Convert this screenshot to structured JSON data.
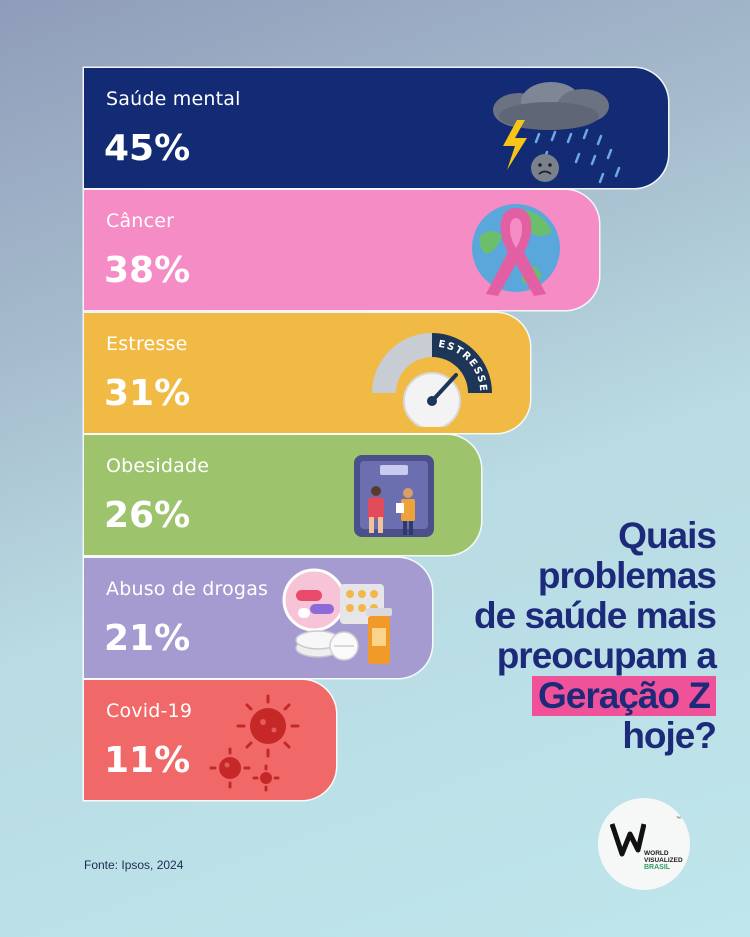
{
  "chart_data": {
    "type": "bar",
    "orientation": "horizontal",
    "unit": "%",
    "categories": [
      "Saúde mental",
      "Câncer",
      "Estresse",
      "Obesidade",
      "Abuso de drogas",
      "Covid-19"
    ],
    "values": [
      45,
      38,
      31,
      26,
      21,
      11
    ],
    "value_labels": [
      "45%",
      "38%",
      "31%",
      "26%",
      "21%",
      "11%"
    ],
    "colors": [
      "#132b74",
      "#f58cc5",
      "#f1ba44",
      "#9dc36d",
      "#a59bd0",
      "#f06868"
    ],
    "icons": [
      "storm-cloud-icon",
      "pink-ribbon-globe-icon",
      "stress-gauge-icon",
      "weighing-scale-icon",
      "pills-icon",
      "virus-icon"
    ],
    "gauge_text": "ESTRESSE",
    "grid": false
  },
  "question": {
    "lines": [
      "Quais",
      "problemas",
      "de saúde mais",
      "preocupam a"
    ],
    "highlight": "Geração Z",
    "last": "hoje?"
  },
  "source": "Fonte: Ipsos, 2024",
  "logo": {
    "lines": [
      "WORLD",
      "VISUALIZED"
    ],
    "country": "BRASIL",
    "tm": "™"
  },
  "colors": {
    "title": "#1d2a7a",
    "highlight": "#f0529a"
  }
}
